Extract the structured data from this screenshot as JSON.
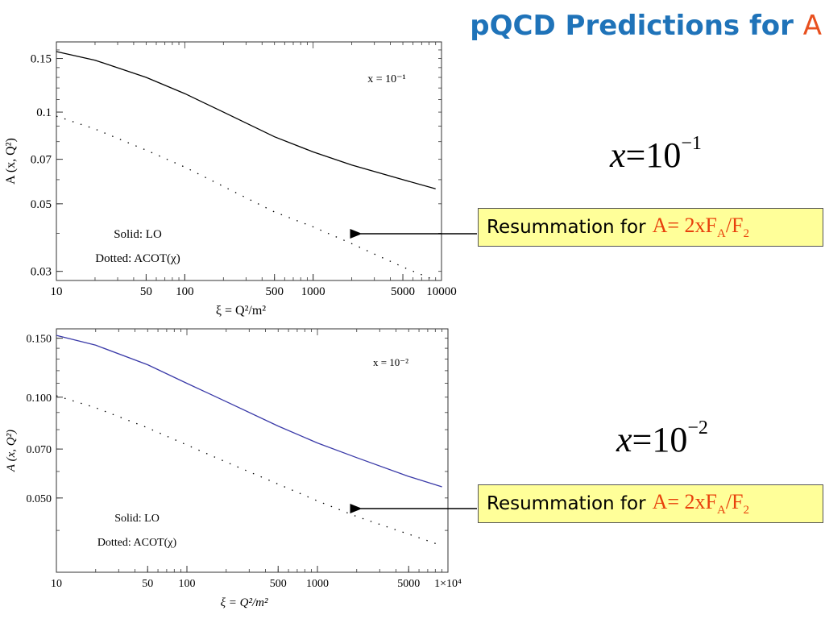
{
  "slide": {
    "title": "pQCD Predictions for ",
    "title_accent": "A",
    "accent_color": "#e8501f",
    "title_color": "#1f73b9"
  },
  "math_labels": [
    {
      "var": "x",
      "eq": "=",
      "base": "10",
      "exp": "−1"
    },
    {
      "var": "x",
      "eq": "=",
      "base": "10",
      "exp": "−2"
    }
  ],
  "callouts": [
    {
      "text": "Resummation for",
      "formula_a": "A= 2xF",
      "sub1": "A",
      "slash": "/F",
      "sub2": "2"
    },
    {
      "text": "Resummation for",
      "formula_a": "A= 2xF",
      "sub1": "A",
      "slash": "/F",
      "sub2": "2"
    }
  ],
  "chart_data": [
    {
      "type": "line",
      "x_scale": "log",
      "y_scale": "log",
      "xlim": [
        10,
        10000
      ],
      "ylim": [
        0.028,
        0.17
      ],
      "xlabel": "ξ = Q²/m²",
      "ylabel": "A (x, Q²)",
      "x_ticks": [
        {
          "v": 10,
          "label": "10"
        },
        {
          "v": 50,
          "label": "50"
        },
        {
          "v": 100,
          "label": "100"
        },
        {
          "v": 500,
          "label": "500"
        },
        {
          "v": 1000,
          "label": "1000"
        },
        {
          "v": 5000,
          "label": "5000"
        },
        {
          "v": 10000,
          "label": "10000"
        }
      ],
      "y_ticks": [
        {
          "v": 0.15,
          "label": "0.15"
        },
        {
          "v": 0.1,
          "label": "0.1"
        },
        {
          "v": 0.07,
          "label": "0.07"
        },
        {
          "v": 0.05,
          "label": "0.05"
        },
        {
          "v": 0.03,
          "label": "0.03"
        }
      ],
      "annotation": "x = 10⁻¹",
      "legend_lines": [
        "Solid:   LO",
        "Dotted:   ACOT(χ)"
      ],
      "series": [
        {
          "name": "LO",
          "style": "solid",
          "color": "#000000",
          "x": [
            10,
            20,
            50,
            100,
            200,
            500,
            1000,
            2000,
            5000,
            9000
          ],
          "y": [
            0.158,
            0.148,
            0.13,
            0.115,
            0.1,
            0.083,
            0.074,
            0.067,
            0.06,
            0.056
          ]
        },
        {
          "name": "ACOT(χ)",
          "style": "dotted",
          "color": "#000000",
          "x": [
            10,
            20,
            50,
            100,
            200,
            500,
            1000,
            2000,
            5000,
            9000
          ],
          "y": [
            0.097,
            0.088,
            0.075,
            0.066,
            0.057,
            0.047,
            0.042,
            0.037,
            0.031,
            0.028
          ]
        }
      ]
    },
    {
      "type": "line",
      "x_scale": "log",
      "y_scale": "log",
      "xlim": [
        10,
        10000
      ],
      "ylim": [
        0.03,
        0.16
      ],
      "xlabel": "ξ = Q²/m²",
      "ylabel": "A (x, Q²)",
      "x_ticks": [
        {
          "v": 10,
          "label": "10"
        },
        {
          "v": 50,
          "label": "50"
        },
        {
          "v": 100,
          "label": "100"
        },
        {
          "v": 500,
          "label": "500"
        },
        {
          "v": 1000,
          "label": "1000"
        },
        {
          "v": 5000,
          "label": "5000"
        },
        {
          "v": 10000,
          "label": "1×10⁴"
        }
      ],
      "y_ticks": [
        {
          "v": 0.15,
          "label": "0.150"
        },
        {
          "v": 0.1,
          "label": "0.100"
        },
        {
          "v": 0.07,
          "label": "0.070"
        },
        {
          "v": 0.05,
          "label": "0.050"
        }
      ],
      "annotation": "x = 10⁻²",
      "legend_lines": [
        "Solid:   LO",
        "Dotted:   ACOT(χ)"
      ],
      "series": [
        {
          "name": "LO",
          "style": "solid",
          "color": "#3a3aa8",
          "x": [
            10,
            20,
            50,
            100,
            200,
            500,
            1000,
            2000,
            5000,
            9000
          ],
          "y": [
            0.153,
            0.143,
            0.125,
            0.11,
            0.097,
            0.082,
            0.073,
            0.066,
            0.058,
            0.054
          ]
        },
        {
          "name": "ACOT(χ)",
          "style": "dotted",
          "color": "#000000",
          "x": [
            10,
            20,
            50,
            100,
            200,
            500,
            1000,
            2000,
            5000,
            9000
          ],
          "y": [
            0.101,
            0.093,
            0.081,
            0.072,
            0.064,
            0.055,
            0.049,
            0.044,
            0.039,
            0.036
          ]
        }
      ]
    }
  ]
}
